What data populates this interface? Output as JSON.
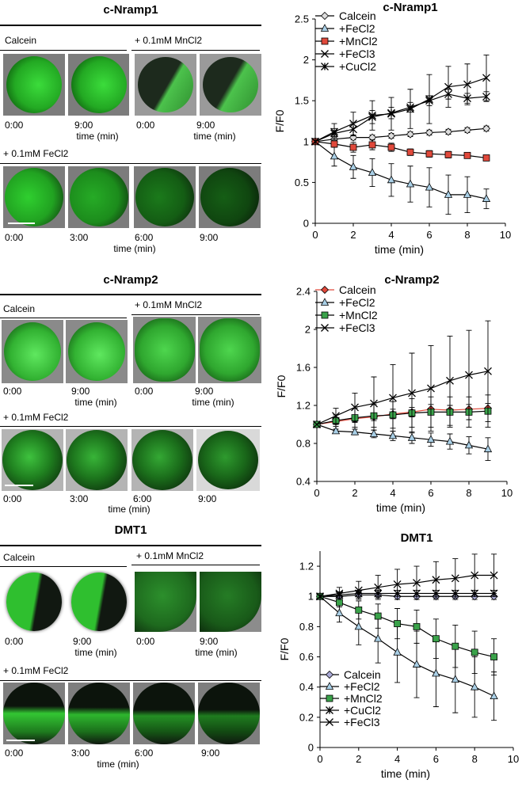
{
  "panels": [
    {
      "title": "c-Nramp1",
      "calcein_label": "Calcein",
      "mn_label": "+ 0.1mM MnCl2",
      "fe_label": "+ 0.1mM FeCl2",
      "calcein_times": [
        "0:00",
        "9:00"
      ],
      "mn_times": [
        "0:00",
        "9:00"
      ],
      "fe_times": [
        "0:00",
        "3:00",
        "6:00",
        "9:00"
      ],
      "time_label": "time (min)"
    },
    {
      "title": "c-Nramp2",
      "calcein_label": "Calcein",
      "mn_label": "+ 0.1mM MnCl2",
      "fe_label": "+ 0.1mM FeCl2",
      "calcein_times": [
        "0:00",
        "9:00"
      ],
      "mn_times": [
        "0:00",
        "9:00"
      ],
      "fe_times": [
        "0:00",
        "3:00",
        "6:00",
        "9:00"
      ],
      "time_label": "time (min)"
    },
    {
      "title": "DMT1",
      "calcein_label": "Calcein",
      "mn_label": "+ 0.1mM MnCl2",
      "fe_label": "+ 0.1mM FeCl2",
      "calcein_times": [
        "0:00",
        "9:00"
      ],
      "mn_times": [
        "0:00",
        "9:00"
      ],
      "fe_times": [
        "0:00",
        "3:00",
        "6:00",
        "9:00"
      ],
      "time_label": "time (min)"
    }
  ],
  "chart_data": [
    {
      "type": "line",
      "title": "c-Nramp1",
      "xlabel": "time (min)",
      "ylabel": "F/F0",
      "xlim": [
        0,
        10
      ],
      "ylim": [
        0,
        2.5
      ],
      "xticks": [
        "0",
        "2",
        "4",
        "6",
        "8",
        "10"
      ],
      "yticks": [
        "0",
        "0.5",
        "1",
        "1.5",
        "2",
        "2.5"
      ],
      "legend_position": "top-left",
      "grid": false,
      "x": [
        0,
        1,
        2,
        3,
        4,
        5,
        6,
        7,
        8,
        9
      ],
      "series": [
        {
          "name": "Calcein",
          "marker": "diamond",
          "color": "#dcdcdc",
          "line": "#000000",
          "values": [
            1.0,
            1.03,
            1.05,
            1.05,
            1.07,
            1.09,
            1.11,
            1.12,
            1.14,
            1.16
          ],
          "err": [
            0,
            0.03,
            0.03,
            0.03,
            0.03,
            0.03,
            0.03,
            0.03,
            0.03,
            0.03
          ]
        },
        {
          "name": "+FeCl2",
          "marker": "triangle",
          "color": "#a9cfe6",
          "line": "#000000",
          "values": [
            1.0,
            0.82,
            0.69,
            0.62,
            0.53,
            0.48,
            0.44,
            0.35,
            0.35,
            0.3
          ],
          "err": [
            0,
            0.12,
            0.14,
            0.17,
            0.2,
            0.22,
            0.24,
            0.24,
            0.22,
            0.12
          ]
        },
        {
          "name": "+MnCl2",
          "marker": "square",
          "color": "#e0493b",
          "line": "#000000",
          "values": [
            1.0,
            0.97,
            0.93,
            0.96,
            0.93,
            0.87,
            0.85,
            0.84,
            0.83,
            0.8
          ],
          "err": [
            0,
            0.04,
            0.06,
            0.06,
            0.05,
            0.04,
            0.04,
            0.04,
            0.03,
            0.03
          ]
        },
        {
          "name": "+FeCl3",
          "marker": "x",
          "color": "#000000",
          "line": "#000000",
          "values": [
            1.0,
            1.12,
            1.22,
            1.32,
            1.34,
            1.4,
            1.52,
            1.67,
            1.7,
            1.78
          ],
          "err": [
            0,
            0.1,
            0.14,
            0.18,
            0.2,
            0.24,
            0.3,
            0.25,
            0.25,
            0.28
          ]
        },
        {
          "name": "+CuCl2",
          "marker": "star",
          "color": "#000000",
          "line": "#000000",
          "values": [
            1.0,
            1.1,
            1.15,
            1.3,
            1.35,
            1.42,
            1.5,
            1.58,
            1.53,
            1.55
          ],
          "err": [
            0,
            0.06,
            0.08,
            0.08,
            0.07,
            0.06,
            0.06,
            0.06,
            0.06,
            0.06
          ]
        }
      ]
    },
    {
      "type": "line",
      "title": "c-Nramp2",
      "xlabel": "time (min)",
      "ylabel": "F/F0",
      "xlim": [
        0,
        10
      ],
      "ylim": [
        0.4,
        2.4
      ],
      "xticks": [
        "0",
        "2",
        "4",
        "6",
        "8",
        "10"
      ],
      "yticks": [
        "0.4",
        "0.8",
        "1.2",
        "1.6",
        "2",
        "2.4"
      ],
      "legend_position": "top-left",
      "grid": false,
      "x": [
        0,
        1,
        2,
        3,
        4,
        5,
        6,
        7,
        8,
        9
      ],
      "series": [
        {
          "name": "Calcein",
          "marker": "diamond",
          "color": "#e0493b",
          "line": "#e0493b",
          "values": [
            1.0,
            1.03,
            1.06,
            1.08,
            1.11,
            1.13,
            1.16,
            1.15,
            1.16,
            1.17
          ],
          "err": [
            0,
            0.03,
            0.04,
            0.04,
            0.05,
            0.05,
            0.05,
            0.05,
            0.05,
            0.05
          ]
        },
        {
          "name": "+FeCl2",
          "marker": "triangle",
          "color": "#a9cfe6",
          "line": "#000000",
          "values": [
            1.0,
            0.93,
            0.92,
            0.9,
            0.88,
            0.86,
            0.84,
            0.82,
            0.78,
            0.74
          ],
          "err": [
            0,
            0.02,
            0.03,
            0.04,
            0.05,
            0.06,
            0.07,
            0.08,
            0.09,
            0.12
          ]
        },
        {
          "name": "+MnCl2",
          "marker": "square",
          "color": "#3aa24a",
          "line": "#000000",
          "values": [
            1.0,
            1.04,
            1.07,
            1.09,
            1.1,
            1.12,
            1.13,
            1.13,
            1.13,
            1.14
          ],
          "err": [
            0,
            0.06,
            0.1,
            0.12,
            0.14,
            0.15,
            0.16,
            0.16,
            0.16,
            0.17
          ]
        },
        {
          "name": "+FeCl3",
          "marker": "x",
          "color": "#000000",
          "line": "#000000",
          "values": [
            1.0,
            1.09,
            1.18,
            1.22,
            1.28,
            1.33,
            1.38,
            1.46,
            1.52,
            1.56
          ],
          "err": [
            0,
            0.08,
            0.15,
            0.28,
            0.35,
            0.42,
            0.45,
            0.47,
            0.47,
            0.53
          ]
        }
      ]
    },
    {
      "type": "line",
      "title": "DMT1",
      "xlabel": "time (min)",
      "ylabel": "F/F0",
      "xlim": [
        0,
        10
      ],
      "ylim": [
        0,
        1.3
      ],
      "xticks": [
        "0",
        "2",
        "4",
        "6",
        "8",
        "10"
      ],
      "yticks": [
        "0",
        "0.2",
        "0.4",
        "0.6",
        "0.8",
        "1",
        "1.2"
      ],
      "legend_position": "bottom-left",
      "grid": false,
      "x": [
        0,
        1,
        2,
        3,
        4,
        5,
        6,
        7,
        8,
        9
      ],
      "series": [
        {
          "name": "Calcein",
          "marker": "diamond",
          "color": "#a9a9d6",
          "line": "#000000",
          "values": [
            1.0,
            1.0,
            1.01,
            1.01,
            1.0,
            1.0,
            1.0,
            1.0,
            1.0,
            1.0
          ],
          "err": [
            0,
            0.02,
            0.02,
            0.02,
            0.02,
            0.02,
            0.02,
            0.02,
            0.02,
            0.02
          ]
        },
        {
          "name": "+FeCl2",
          "marker": "triangle",
          "color": "#a9cfe6",
          "line": "#000000",
          "values": [
            1.0,
            0.89,
            0.8,
            0.72,
            0.63,
            0.55,
            0.49,
            0.45,
            0.4,
            0.34
          ],
          "err": [
            0,
            0.06,
            0.12,
            0.16,
            0.2,
            0.22,
            0.22,
            0.22,
            0.2,
            0.16
          ]
        },
        {
          "name": "+MnCl2",
          "marker": "square",
          "color": "#3aa24a",
          "line": "#000000",
          "values": [
            1.0,
            0.96,
            0.91,
            0.87,
            0.82,
            0.8,
            0.72,
            0.67,
            0.63,
            0.6
          ],
          "err": [
            0,
            0.03,
            0.06,
            0.08,
            0.1,
            0.11,
            0.13,
            0.14,
            0.14,
            0.12
          ]
        },
        {
          "name": "+CuCl2",
          "marker": "star",
          "color": "#000000",
          "line": "#000000",
          "values": [
            1.0,
            1.01,
            1.02,
            1.02,
            1.02,
            1.02,
            1.02,
            1.02,
            1.02,
            1.02
          ],
          "err": [
            0,
            0.02,
            0.02,
            0.02,
            0.02,
            0.02,
            0.02,
            0.02,
            0.02,
            0.02
          ]
        },
        {
          "name": "+FeCl3",
          "marker": "x",
          "color": "#000000",
          "line": "#000000",
          "values": [
            1.0,
            1.02,
            1.04,
            1.06,
            1.08,
            1.09,
            1.11,
            1.12,
            1.14,
            1.14
          ],
          "err": [
            0,
            0.04,
            0.06,
            0.08,
            0.1,
            0.11,
            0.12,
            0.13,
            0.14,
            0.14
          ]
        }
      ]
    }
  ]
}
